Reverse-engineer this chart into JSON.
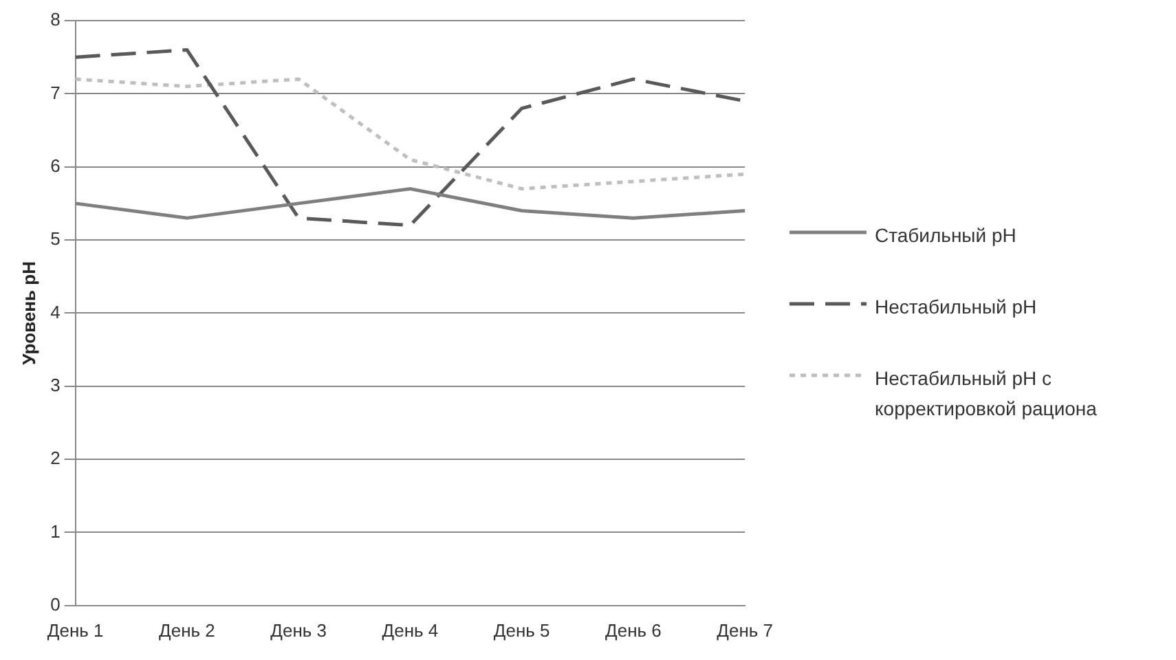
{
  "chart_data": {
    "type": "line",
    "ylabel": "Уровень pH",
    "categories": [
      "День 1",
      "День 2",
      "День 3",
      "День 4",
      "День 5",
      "День 6",
      "День 7"
    ],
    "series": [
      {
        "name": "Стабильный pH",
        "color": "#7f7f7f",
        "line_style": "solid",
        "values": [
          5.5,
          5.3,
          5.5,
          5.7,
          5.4,
          5.3,
          5.4
        ]
      },
      {
        "name": "Нестабильный pH",
        "color": "#595959",
        "line_style": "dashed",
        "values": [
          7.5,
          7.6,
          5.3,
          5.2,
          6.8,
          7.2,
          6.9
        ]
      },
      {
        "name": "Нестабильный pH с корректировкой рациона",
        "color": "#bfbfbf",
        "line_style": "dotted",
        "values": [
          7.2,
          7.1,
          7.2,
          6.1,
          5.7,
          5.8,
          5.9
        ]
      }
    ],
    "ylim": [
      0,
      8
    ],
    "yticks": [
      0,
      1,
      2,
      3,
      4,
      5,
      6,
      7,
      8
    ],
    "grid": "y",
    "legend": "right",
    "marker": "none"
  }
}
